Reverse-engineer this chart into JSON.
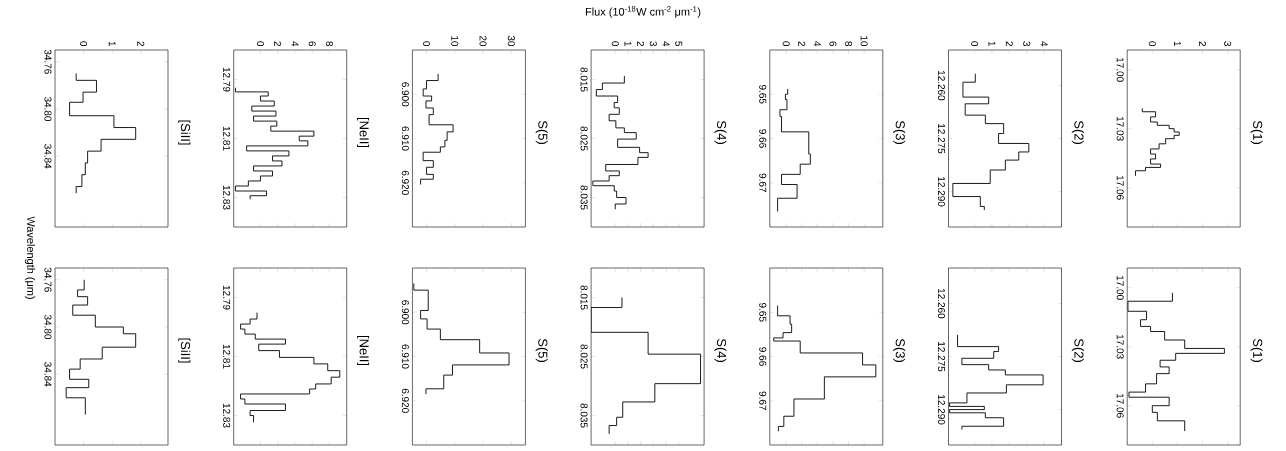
{
  "chart_data": [
    {
      "type": "step",
      "orientation": "horizontal",
      "annotations": [
        "[SiII]"
      ],
      "ylabel": "Wavelength (μm)",
      "color": "#000000",
      "x": [
        34.77,
        34.7757,
        34.7857,
        34.7943,
        34.8057,
        34.8157,
        34.8257,
        34.8357,
        34.8457,
        34.8557,
        34.8657,
        34.8714
      ],
      "values": [
        -0.26,
        0.45,
        -0.02,
        -0.49,
        1.06,
        1.82,
        0.61,
        0.14,
        0.06,
        -0.06,
        -0.26,
        -0.26
      ],
      "ylim": [
        34.9,
        34.75
      ],
      "xlim": [
        -1,
        2.95
      ],
      "yticks": [
        {
          "value": 34.76,
          "label": "34.76"
        },
        {
          "value": 34.8,
          "label": "34.80"
        },
        {
          "value": 34.84,
          "label": "34.84"
        }
      ],
      "xticks": [
        {
          "value": 0,
          "label": "0"
        },
        {
          "value": 1,
          "label": "1"
        },
        {
          "value": 2,
          "label": "2"
        }
      ]
    },
    {
      "type": "step",
      "orientation": "horizontal",
      "annotations": [
        "[NeII]"
      ],
      "color": "#000000",
      "x": [
        12.7928,
        12.7942,
        12.7956,
        12.7973,
        12.799,
        12.8007,
        12.8024,
        12.8041,
        12.8058,
        12.8075,
        12.8092,
        12.8108,
        12.8125,
        12.8142,
        12.8159,
        12.8176,
        12.8193,
        12.821,
        12.8227,
        12.8244,
        12.8261,
        12.8278,
        12.8294,
        12.8306
      ],
      "values": [
        -2.9,
        0.9,
        0,
        1.6,
        -1,
        1.8,
        -0.8,
        1.9,
        1.2,
        6.2,
        4.5,
        5.5,
        -1.6,
        3.3,
        1.4,
        2.5,
        -0.8,
        1.4,
        0,
        -1.4,
        -2.9,
        0.7,
        -1.2,
        -1.2
      ],
      "ylim": [
        12.84,
        12.78
      ],
      "xlim": [
        -3.1,
        10
      ],
      "yticks": [
        {
          "value": 12.79,
          "label": "12.79"
        },
        {
          "value": 12.81,
          "label": "12.81"
        },
        {
          "value": 12.83,
          "label": "12.83"
        }
      ],
      "xticks": [
        {
          "value": 0,
          "label": "0"
        },
        {
          "value": 2,
          "label": "2"
        },
        {
          "value": 4,
          "label": "4"
        },
        {
          "value": 6,
          "label": "6"
        },
        {
          "value": 8,
          "label": "8"
        }
      ]
    },
    {
      "type": "step",
      "orientation": "horizontal",
      "annotations": [
        "S(5)"
      ],
      "color": "#000000",
      "x": [
        6.8954,
        6.8969,
        6.8988,
        6.9004,
        6.9015,
        6.9031,
        6.9046,
        6.9069,
        6.9085,
        6.9104,
        6.9119,
        6.9131,
        6.915,
        6.9165,
        6.9181,
        6.9192,
        6.9204
      ],
      "values": [
        4.1,
        0,
        -1.2,
        1.8,
        -0.2,
        2.4,
        0.9,
        9.4,
        7.3,
        6.5,
        4.9,
        -1.2,
        2.4,
        0,
        2.4,
        -2.1,
        -2.1
      ],
      "ylim": [
        6.93,
        6.89
      ],
      "xlim": [
        -5,
        35
      ],
      "yticks": [
        {
          "value": 6.9,
          "label": "6.900"
        },
        {
          "value": 6.91,
          "label": "6.910"
        },
        {
          "value": 6.92,
          "label": "6.920"
        }
      ],
      "xticks": [
        {
          "value": 0,
          "label": "0"
        },
        {
          "value": 10,
          "label": "10"
        },
        {
          "value": 20,
          "label": "20"
        },
        {
          "value": 30,
          "label": "30"
        }
      ]
    },
    {
      "type": "step",
      "orientation": "horizontal",
      "annotations": [
        "S(4)"
      ],
      "xlabel": "Flux (10$^{-18}$W cm$^{-2}$ μm$^{-1}$)",
      "color": "#000000",
      "x": [
        8.0144,
        8.0156,
        8.0167,
        8.0178,
        8.0189,
        8.0198,
        8.0209,
        8.022,
        8.0232,
        8.024,
        8.0251,
        8.0265,
        8.0274,
        8.0282,
        8.0294,
        8.0305,
        8.0313,
        8.0322,
        8.033,
        8.0339,
        8.035,
        8.0361,
        8.037
      ],
      "values": [
        0.72,
        -1.01,
        -1.49,
        0.19,
        -0.08,
        0.32,
        -0.48,
        0.05,
        0.72,
        1.65,
        0.19,
        1.92,
        2.59,
        1.79,
        -0.75,
        0.32,
        -0.48,
        -1.76,
        -0.08,
        0.11,
        0.85,
        0,
        0
      ],
      "ylim": [
        8.04,
        8.01
      ],
      "xlim": [
        -1.9,
        7
      ],
      "yticks": [
        {
          "value": 8.015,
          "label": "8.015"
        },
        {
          "value": 8.025,
          "label": "8.025"
        },
        {
          "value": 8.035,
          "label": "8.035"
        }
      ],
      "xticks": [
        {
          "value": 0,
          "label": "0"
        },
        {
          "value": 1,
          "label": "1"
        },
        {
          "value": 2,
          "label": "2"
        },
        {
          "value": 3,
          "label": "3"
        },
        {
          "value": 4,
          "label": "4"
        },
        {
          "value": 5,
          "label": "5"
        }
      ]
    },
    {
      "type": "step",
      "orientation": "horizontal",
      "annotations": [
        "S(3)"
      ],
      "color": "#000000",
      "x": [
        9.6488,
        9.65,
        9.6512,
        9.6535,
        9.655,
        9.6585,
        9.6635,
        9.6658,
        9.6681,
        9.6704,
        9.6735,
        9.6765
      ],
      "values": [
        0.2,
        -0.1,
        0.1,
        -0.8,
        -0.6,
        2.9,
        3.1,
        1.8,
        -0.6,
        1.4,
        -1.1,
        -1.1
      ],
      "ylim": [
        9.68,
        9.64
      ],
      "xlim": [
        -2.1,
        12.4
      ],
      "yticks": [
        {
          "value": 9.65,
          "label": "9.65"
        },
        {
          "value": 9.66,
          "label": "9.66"
        },
        {
          "value": 9.67,
          "label": "9.67"
        }
      ],
      "xticks": [
        {
          "value": 0,
          "label": "0"
        },
        {
          "value": 2,
          "label": "2"
        },
        {
          "value": 4,
          "label": "4"
        },
        {
          "value": 6,
          "label": "6"
        },
        {
          "value": 8,
          "label": "8"
        },
        {
          "value": 10,
          "label": "10"
        }
      ]
    },
    {
      "type": "step",
      "orientation": "horizontal",
      "annotations": [
        "S(2)"
      ],
      "color": "#000000",
      "x": [
        12.2567,
        12.2591,
        12.2633,
        12.2652,
        12.2684,
        12.2708,
        12.2736,
        12.2764,
        12.2788,
        12.2811,
        12.2839,
        12.2877,
        12.2914,
        12.2942,
        12.2952
      ],
      "values": [
        0.04,
        -0.67,
        0.81,
        -0.54,
        0.62,
        1.67,
        1.38,
        3.12,
        2.54,
        1.77,
        0.9,
        -1.25,
        0.33,
        0.56,
        0.56
      ],
      "ylim": [
        12.3,
        12.25
      ],
      "xlim": [
        -1.5,
        5
      ],
      "yticks": [
        {
          "value": 12.26,
          "label": "12.260"
        },
        {
          "value": 12.275,
          "label": "12.275"
        },
        {
          "value": 12.29,
          "label": "12.290"
        }
      ],
      "xticks": [
        {
          "value": 0,
          "label": "0"
        },
        {
          "value": 1,
          "label": "1"
        },
        {
          "value": 2,
          "label": "2"
        },
        {
          "value": 3,
          "label": "3"
        },
        {
          "value": 4,
          "label": "4"
        }
      ]
    },
    {
      "type": "step",
      "orientation": "horizontal",
      "annotations": [
        "S(1)"
      ],
      "color": "#000000",
      "x": [
        17.0197,
        17.0214,
        17.024,
        17.0266,
        17.0283,
        17.03,
        17.0317,
        17.0334,
        17.0351,
        17.0377,
        17.0403,
        17.0429,
        17.0454,
        17.048,
        17.0497,
        17.0514,
        17.054
      ],
      "values": [
        -0.4,
        0.13,
        -0.07,
        0.2,
        0.67,
        0.87,
        1.07,
        0.87,
        0.53,
        0.27,
        -0.07,
        0.13,
        -0.07,
        0.33,
        -0.27,
        -0.67,
        -0.67
      ],
      "ylim": [
        17.08,
        16.99
      ],
      "xlim": [
        -1,
        3.5
      ],
      "yticks": [
        {
          "value": 17,
          "label": "17.00"
        },
        {
          "value": 17.03,
          "label": "17.03"
        },
        {
          "value": 17.06,
          "label": "17.06"
        }
      ],
      "xticks": [
        {
          "value": 0,
          "label": "0"
        },
        {
          "value": 1,
          "label": "1"
        },
        {
          "value": 2,
          "label": "2"
        },
        {
          "value": 3,
          "label": "3"
        }
      ]
    },
    {
      "type": "step",
      "orientation": "horizontal",
      "annotations": [
        "[SiII]"
      ],
      "color": "#000000",
      "tick_labels": "y",
      "x": [
        34.76,
        34.7686,
        34.7743,
        34.7814,
        34.79,
        34.8,
        34.8057,
        34.8171,
        34.8271,
        34.8357,
        34.8443,
        34.8514,
        34.86,
        34.8743
      ],
      "values": [
        0.02,
        -0.21,
        0.14,
        -0.38,
        0.41,
        1.39,
        1.82,
        0.65,
        -0.12,
        -0.49,
        0.18,
        -0.61,
        0.06,
        0.06
      ],
      "ylim": [
        34.9,
        34.75
      ],
      "xlim": [
        -1,
        2.95
      ],
      "yticks": [
        {
          "value": 34.76,
          "label": "34.76"
        },
        {
          "value": 34.8,
          "label": "34.80"
        },
        {
          "value": 34.84,
          "label": "34.84"
        }
      ],
      "xticks": [
        {
          "value": 0,
          "label": null
        },
        {
          "value": 1,
          "label": null
        },
        {
          "value": 2,
          "label": null
        }
      ]
    },
    {
      "type": "step",
      "orientation": "horizontal",
      "annotations": [
        "[NeII]"
      ],
      "color": "#000000",
      "tick_labels": "y",
      "x": [
        12.7951,
        12.7973,
        12.799,
        12.8007,
        12.8024,
        12.8041,
        12.8058,
        12.808,
        12.8103,
        12.8125,
        12.8148,
        12.817,
        12.8193,
        12.821,
        12.8227,
        12.8244,
        12.8261,
        12.8283,
        12.83,
        12.8323
      ],
      "values": [
        -0.4,
        -1.2,
        -2.3,
        -1.8,
        -0.6,
        2.9,
        -0.2,
        2.2,
        6.2,
        7.8,
        9.2,
        8.2,
        6.4,
        5.7,
        -2.3,
        -1.8,
        2.9,
        -1.2,
        -0.8,
        -0.8
      ],
      "ylim": [
        12.84,
        12.78
      ],
      "xlim": [
        -3.1,
        10
      ],
      "yticks": [
        {
          "value": 12.79,
          "label": "12.79"
        },
        {
          "value": 12.81,
          "label": "12.81"
        },
        {
          "value": 12.83,
          "label": "12.83"
        }
      ],
      "xticks": [
        {
          "value": 0,
          "label": null
        },
        {
          "value": 2,
          "label": null
        },
        {
          "value": 4,
          "label": null
        },
        {
          "value": 6,
          "label": null
        },
        {
          "value": 8,
          "label": null
        }
      ]
    },
    {
      "type": "step",
      "orientation": "horizontal",
      "annotations": [
        "S(5)"
      ],
      "color": "#000000",
      "tick_labels": "y",
      "x": [
        6.8935,
        6.895,
        6.8996,
        6.9015,
        6.9038,
        6.9062,
        6.9092,
        6.9119,
        6.9142,
        6.9173,
        6.9185
      ],
      "values": [
        -4.5,
        0.6,
        -2.1,
        0.2,
        4.9,
        18.8,
        29.2,
        9.2,
        6.1,
        -0.2,
        -0.2
      ],
      "ylim": [
        6.93,
        6.89
      ],
      "xlim": [
        -5,
        35
      ],
      "yticks": [
        {
          "value": 6.9,
          "label": "6.900"
        },
        {
          "value": 6.91,
          "label": "6.910"
        },
        {
          "value": 6.92,
          "label": "6.920"
        }
      ],
      "xticks": [
        {
          "value": 0,
          "label": null
        },
        {
          "value": 10,
          "label": null
        },
        {
          "value": 20,
          "label": null
        },
        {
          "value": 30,
          "label": null
        }
      ]
    },
    {
      "type": "step",
      "orientation": "horizontal",
      "annotations": [
        "S(4)"
      ],
      "color": "#000000",
      "tick_labels": "y",
      "x": [
        8.015,
        8.0167,
        8.0209,
        8.0246,
        8.0296,
        8.0327,
        8.0353,
        8.0367,
        8.0381
      ],
      "values": [
        0.53,
        -1.9,
        2.59,
        6.72,
        3.12,
        0.59,
        0.11,
        -0.48,
        -0.48
      ],
      "ylim": [
        8.04,
        8.01
      ],
      "xlim": [
        -1.9,
        7
      ],
      "yticks": [
        {
          "value": 8.015,
          "label": "8.015"
        },
        {
          "value": 8.025,
          "label": "8.025"
        },
        {
          "value": 8.035,
          "label": "8.035"
        }
      ],
      "xticks": [
        {
          "value": 0,
          "label": null
        },
        {
          "value": 1,
          "label": null
        },
        {
          "value": 2,
          "label": null
        },
        {
          "value": 3,
          "label": null
        },
        {
          "value": 4,
          "label": null
        },
        {
          "value": 5,
          "label": null
        }
      ]
    },
    {
      "type": "step",
      "orientation": "horizontal",
      "annotations": [
        "S(3)"
      ],
      "color": "#000000",
      "tick_labels": "y",
      "x": [
        9.6485,
        9.6508,
        9.6527,
        9.6546,
        9.6558,
        9.6565,
        9.6592,
        9.6619,
        9.6646,
        9.6696,
        9.6735,
        9.6758,
        9.6769
      ],
      "values": [
        -1.1,
        0.5,
        0.7,
        -0.4,
        -1.6,
        1.8,
        9.8,
        11.5,
        4.9,
        1,
        -0.3,
        -1,
        -1
      ],
      "ylim": [
        9.68,
        9.64
      ],
      "xlim": [
        -2.1,
        12.4
      ],
      "yticks": [
        {
          "value": 9.65,
          "label": "9.65"
        },
        {
          "value": 9.66,
          "label": "9.66"
        },
        {
          "value": 9.67,
          "label": "9.67"
        }
      ],
      "xticks": [
        {
          "value": 0,
          "label": null
        },
        {
          "value": 2,
          "label": null
        },
        {
          "value": 4,
          "label": null
        },
        {
          "value": 6,
          "label": null
        },
        {
          "value": 8,
          "label": null
        },
        {
          "value": 10,
          "label": null
        }
      ]
    },
    {
      "type": "step",
      "orientation": "horizontal",
      "annotations": [
        "S(2)"
      ],
      "color": "#000000",
      "tick_labels": "y",
      "x": [
        12.2689,
        12.2722,
        12.2736,
        12.2755,
        12.2773,
        12.2788,
        12.2802,
        12.283,
        12.2853,
        12.2881,
        12.2891,
        12.29,
        12.2909,
        12.2923,
        12.2947,
        12.2956
      ],
      "values": [
        -0.98,
        1.38,
        1.1,
        -0.73,
        0.81,
        1.77,
        3.94,
        1.83,
        -0.44,
        -1.44,
        0.56,
        -1.44,
        0.62,
        1.67,
        -0.73,
        -0.73
      ],
      "ylim": [
        12.3,
        12.25
      ],
      "xlim": [
        -1.5,
        5
      ],
      "yticks": [
        {
          "value": 12.26,
          "label": "12.260"
        },
        {
          "value": 12.275,
          "label": "12.275"
        },
        {
          "value": 12.29,
          "label": "12.290"
        }
      ],
      "xticks": [
        {
          "value": 0,
          "label": null
        },
        {
          "value": 1,
          "label": null
        },
        {
          "value": 2,
          "label": null
        },
        {
          "value": 3,
          "label": null
        },
        {
          "value": 4,
          "label": null
        }
      ]
    },
    {
      "type": "step",
      "orientation": "horizontal",
      "annotations": [
        "S(1)"
      ],
      "color": "#000000",
      "tick_labels": "y",
      "x": [
        17.0026,
        17.0069,
        17.012,
        17.0163,
        17.0197,
        17.0223,
        17.0266,
        17.0309,
        17.0334,
        17.0369,
        17.0403,
        17.0437,
        17.0489,
        17.0531,
        17.0557,
        17.06,
        17.0634,
        17.0677,
        17.0729
      ],
      "values": [
        0.8,
        -0.97,
        -0.23,
        -0.47,
        -0.07,
        0.49,
        1.29,
        2.87,
        0.93,
        0.31,
        0.67,
        0.17,
        -0.27,
        -0.93,
        0.67,
        0,
        0.2,
        1.29,
        1.29
      ],
      "ylim": [
        17.08,
        16.99
      ],
      "xlim": [
        -1,
        3.5
      ],
      "yticks": [
        {
          "value": 17,
          "label": "17.00"
        },
        {
          "value": 17.03,
          "label": "17.03"
        },
        {
          "value": 17.06,
          "label": "17.06"
        }
      ],
      "xticks": [
        {
          "value": 0,
          "label": null
        },
        {
          "value": 1,
          "label": null
        },
        {
          "value": 2,
          "label": null
        },
        {
          "value": 3,
          "label": null
        }
      ]
    }
  ]
}
